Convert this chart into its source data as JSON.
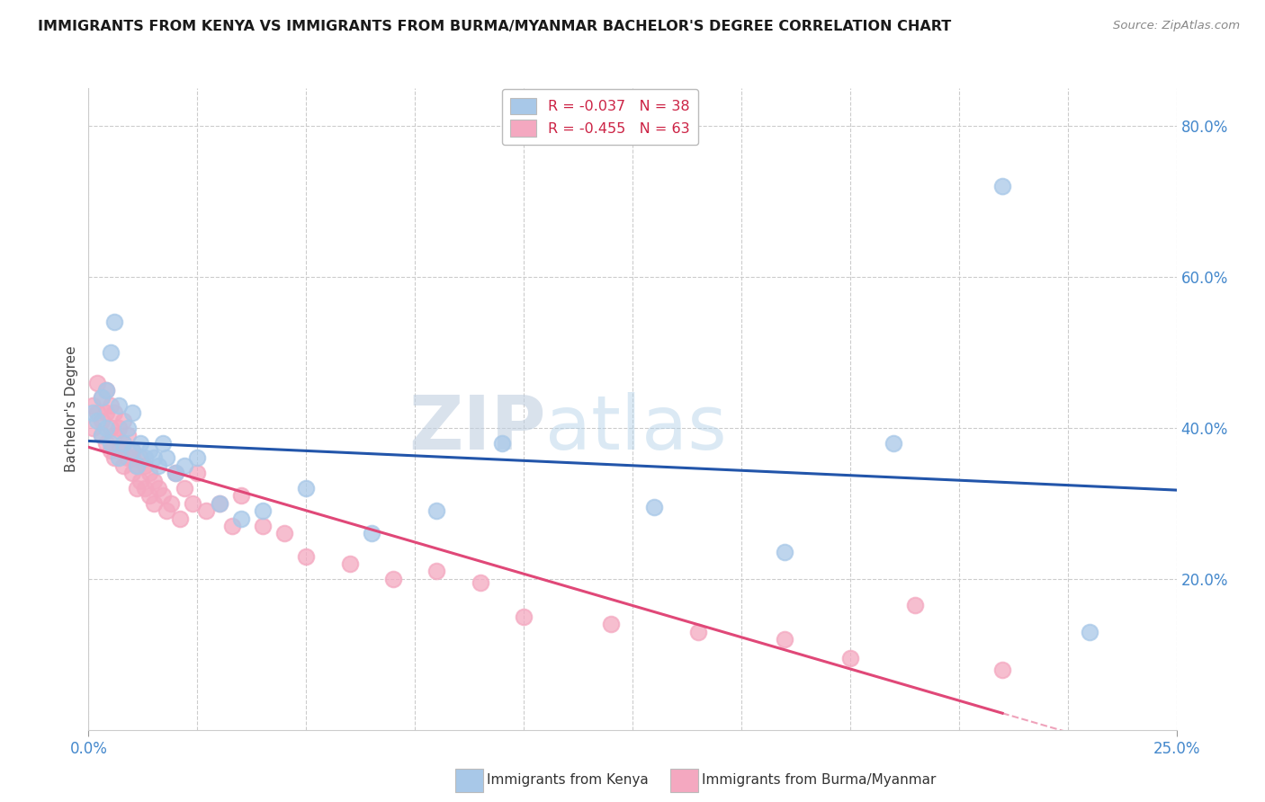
{
  "title": "IMMIGRANTS FROM KENYA VS IMMIGRANTS FROM BURMA/MYANMAR BACHELOR'S DEGREE CORRELATION CHART",
  "source_text": "Source: ZipAtlas.com",
  "ylabel": "Bachelor's Degree",
  "xlim": [
    0.0,
    0.25
  ],
  "ylim": [
    0.0,
    0.85
  ],
  "xtick_vals": [
    0.0,
    0.25
  ],
  "xtick_labels": [
    "0.0%",
    "25.0%"
  ],
  "ytick_positions": [
    0.2,
    0.4,
    0.6,
    0.8
  ],
  "ytick_labels": [
    "20.0%",
    "40.0%",
    "60.0%",
    "80.0%"
  ],
  "background_color": "#ffffff",
  "grid_color": "#cccccc",
  "kenya_color": "#a8c8e8",
  "burma_color": "#f4a8c0",
  "kenya_line_color": "#2255aa",
  "burma_line_color": "#e04878",
  "kenya_R": -0.037,
  "kenya_N": 38,
  "burma_R": -0.455,
  "burma_N": 63,
  "watermark_zip": "ZIP",
  "watermark_atlas": "atlas",
  "legend_label_kenya": "Immigrants from Kenya",
  "legend_label_burma": "Immigrants from Burma/Myanmar",
  "kenya_x": [
    0.001,
    0.002,
    0.003,
    0.003,
    0.004,
    0.004,
    0.005,
    0.005,
    0.006,
    0.007,
    0.007,
    0.008,
    0.009,
    0.01,
    0.01,
    0.011,
    0.012,
    0.013,
    0.014,
    0.015,
    0.016,
    0.017,
    0.018,
    0.02,
    0.022,
    0.025,
    0.03,
    0.035,
    0.04,
    0.05,
    0.065,
    0.08,
    0.095,
    0.13,
    0.16,
    0.185,
    0.21,
    0.23
  ],
  "kenya_y": [
    0.42,
    0.41,
    0.44,
    0.39,
    0.4,
    0.45,
    0.38,
    0.5,
    0.54,
    0.36,
    0.43,
    0.38,
    0.4,
    0.37,
    0.42,
    0.35,
    0.38,
    0.36,
    0.37,
    0.36,
    0.35,
    0.38,
    0.36,
    0.34,
    0.35,
    0.36,
    0.3,
    0.28,
    0.29,
    0.32,
    0.26,
    0.29,
    0.38,
    0.295,
    0.235,
    0.38,
    0.72,
    0.13
  ],
  "burma_x": [
    0.001,
    0.001,
    0.002,
    0.002,
    0.003,
    0.003,
    0.003,
    0.004,
    0.004,
    0.004,
    0.005,
    0.005,
    0.005,
    0.006,
    0.006,
    0.006,
    0.007,
    0.007,
    0.008,
    0.008,
    0.008,
    0.009,
    0.009,
    0.01,
    0.01,
    0.01,
    0.011,
    0.011,
    0.012,
    0.012,
    0.013,
    0.013,
    0.014,
    0.014,
    0.015,
    0.015,
    0.016,
    0.017,
    0.018,
    0.019,
    0.02,
    0.021,
    0.022,
    0.024,
    0.025,
    0.027,
    0.03,
    0.033,
    0.035,
    0.04,
    0.045,
    0.05,
    0.06,
    0.07,
    0.08,
    0.09,
    0.1,
    0.12,
    0.14,
    0.16,
    0.175,
    0.19,
    0.21
  ],
  "burma_y": [
    0.4,
    0.43,
    0.46,
    0.42,
    0.41,
    0.44,
    0.39,
    0.42,
    0.38,
    0.45,
    0.43,
    0.4,
    0.37,
    0.42,
    0.39,
    0.36,
    0.4,
    0.37,
    0.41,
    0.38,
    0.35,
    0.39,
    0.36,
    0.37,
    0.34,
    0.36,
    0.35,
    0.32,
    0.36,
    0.33,
    0.35,
    0.32,
    0.34,
    0.31,
    0.33,
    0.3,
    0.32,
    0.31,
    0.29,
    0.3,
    0.34,
    0.28,
    0.32,
    0.3,
    0.34,
    0.29,
    0.3,
    0.27,
    0.31,
    0.27,
    0.26,
    0.23,
    0.22,
    0.2,
    0.21,
    0.195,
    0.15,
    0.14,
    0.13,
    0.12,
    0.095,
    0.165,
    0.08
  ]
}
